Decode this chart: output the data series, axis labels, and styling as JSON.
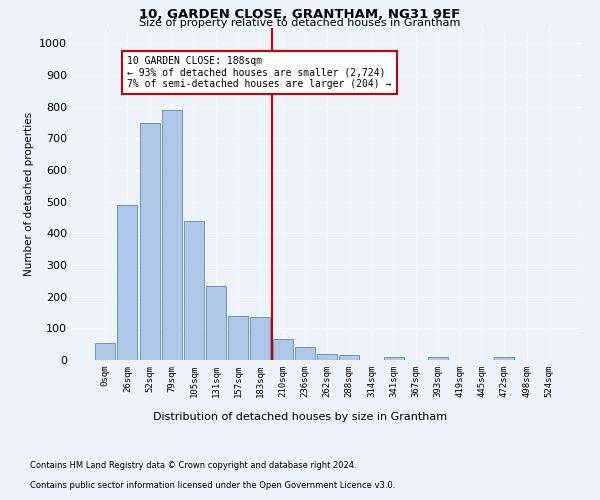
{
  "title1": "10, GARDEN CLOSE, GRANTHAM, NG31 9EF",
  "title2": "Size of property relative to detached houses in Grantham",
  "xlabel": "Distribution of detached houses by size in Grantham",
  "ylabel": "Number of detached properties",
  "bar_labels": [
    "0sqm",
    "26sqm",
    "52sqm",
    "79sqm",
    "105sqm",
    "131sqm",
    "157sqm",
    "183sqm",
    "210sqm",
    "236sqm",
    "262sqm",
    "288sqm",
    "314sqm",
    "341sqm",
    "367sqm",
    "393sqm",
    "419sqm",
    "445sqm",
    "472sqm",
    "498sqm",
    "524sqm"
  ],
  "bar_values": [
    55,
    490,
    750,
    790,
    440,
    235,
    140,
    135,
    65,
    40,
    20,
    15,
    0,
    10,
    0,
    10,
    0,
    0,
    10,
    0,
    0
  ],
  "bar_color": "#aec6e8",
  "bar_edgecolor": "#5a8abf",
  "property_line_x": 7.5,
  "annotation_title": "10 GARDEN CLOSE: 188sqm",
  "annotation_line1": "← 93% of detached houses are smaller (2,724)",
  "annotation_line2": "7% of semi-detached houses are larger (204) →",
  "annotation_box_color": "#ffffff",
  "annotation_box_edgecolor": "#cc0000",
  "vline_color": "#cc0000",
  "ylim": [
    0,
    1050
  ],
  "yticks": [
    0,
    100,
    200,
    300,
    400,
    500,
    600,
    700,
    800,
    900,
    1000
  ],
  "footnote1": "Contains HM Land Registry data © Crown copyright and database right 2024.",
  "footnote2": "Contains public sector information licensed under the Open Government Licence v3.0.",
  "background_color": "#eef2f9",
  "grid_color": "#ffffff"
}
